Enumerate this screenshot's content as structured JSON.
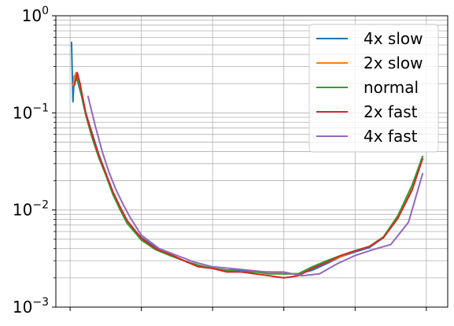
{
  "chart_data": {
    "type": "line",
    "title": "",
    "xlabel": "",
    "ylabel": "",
    "yscale": "log",
    "ylim": [
      0.001,
      1
    ],
    "xlim": [
      -0.2,
      5.3
    ],
    "x_ticks": [
      0,
      1,
      2,
      3,
      4,
      5
    ],
    "x_tick_labels_visible": false,
    "y_ticks": [
      {
        "value": 0.001,
        "base": "10",
        "exp": "−3"
      },
      {
        "value": 0.01,
        "base": "10",
        "exp": "−2"
      },
      {
        "value": 0.1,
        "base": "10",
        "exp": "−1"
      },
      {
        "value": 1,
        "base": "10",
        "exp": "0"
      }
    ],
    "grid": {
      "major": true,
      "minor_y": true
    },
    "legend": {
      "position": "top-right"
    },
    "series": [
      {
        "name": "4x slow",
        "color": "#1f77b4",
        "x": [
          0.02,
          0.04,
          0.06,
          0.1,
          0.13,
          0.16,
          0.2,
          0.3,
          0.4,
          0.5,
          0.6,
          0.7,
          0.8,
          1.0,
          1.2,
          1.4,
          1.6,
          1.8,
          2.0,
          2.2,
          2.4,
          2.6,
          2.8,
          3.0,
          3.2,
          3.4,
          3.6,
          3.8,
          4.0,
          4.2,
          4.4,
          4.6,
          4.8,
          4.95
        ],
        "y": [
          0.54,
          0.13,
          0.24,
          0.22,
          0.18,
          0.15,
          0.11,
          0.065,
          0.038,
          0.024,
          0.015,
          0.0105,
          0.0075,
          0.0052,
          0.0041,
          0.0035,
          0.003,
          0.0027,
          0.0025,
          0.0024,
          0.0024,
          0.0023,
          0.0023,
          0.0022,
          0.0022,
          0.0024,
          0.0028,
          0.0033,
          0.0037,
          0.0041,
          0.0052,
          0.0085,
          0.017,
          0.036
        ]
      },
      {
        "name": "2x slow",
        "color": "#ff7f0e",
        "x": [
          0.04,
          0.08,
          0.1,
          0.14,
          0.18,
          0.22,
          0.3,
          0.4,
          0.5,
          0.6,
          0.7,
          0.8,
          1.0,
          1.2,
          1.4,
          1.6,
          1.8,
          2.0,
          2.2,
          2.4,
          2.6,
          2.8,
          3.0,
          3.2,
          3.4,
          3.6,
          3.8,
          4.0,
          4.2,
          4.4,
          4.6,
          4.8,
          4.95
        ],
        "y": [
          0.19,
          0.26,
          0.24,
          0.19,
          0.14,
          0.1,
          0.062,
          0.037,
          0.024,
          0.0148,
          0.0103,
          0.0074,
          0.005,
          0.004,
          0.0035,
          0.003,
          0.0027,
          0.0025,
          0.0024,
          0.0023,
          0.0023,
          0.0023,
          0.0022,
          0.0022,
          0.0025,
          0.0029,
          0.0033,
          0.0038,
          0.0042,
          0.0053,
          0.0087,
          0.017,
          0.034
        ]
      },
      {
        "name": "normal",
        "color": "#2ca02c",
        "x": [
          0.06,
          0.1,
          0.14,
          0.18,
          0.22,
          0.3,
          0.4,
          0.5,
          0.6,
          0.7,
          0.8,
          1.0,
          1.2,
          1.4,
          1.6,
          1.8,
          2.0,
          2.2,
          2.4,
          2.6,
          2.8,
          3.0,
          3.2,
          3.4,
          3.6,
          3.8,
          4.0,
          4.2,
          4.4,
          4.6,
          4.8,
          4.95
        ],
        "y": [
          0.2,
          0.23,
          0.18,
          0.13,
          0.095,
          0.058,
          0.035,
          0.023,
          0.0145,
          0.0101,
          0.0073,
          0.0049,
          0.0039,
          0.0034,
          0.003,
          0.0027,
          0.0025,
          0.0024,
          0.0023,
          0.0023,
          0.0022,
          0.0022,
          0.0022,
          0.0026,
          0.003,
          0.0034,
          0.0038,
          0.0042,
          0.0053,
          0.0087,
          0.018,
          0.036
        ]
      },
      {
        "name": "2x fast",
        "color": "#d62728",
        "x": [
          0.06,
          0.1,
          0.14,
          0.18,
          0.22,
          0.3,
          0.4,
          0.5,
          0.6,
          0.7,
          0.8,
          1.0,
          1.2,
          1.4,
          1.6,
          1.8,
          2.0,
          2.2,
          2.4,
          2.6,
          2.8,
          3.0,
          3.2,
          3.4,
          3.6,
          3.8,
          4.0,
          4.2,
          4.4,
          4.6,
          4.8,
          4.95
        ],
        "y": [
          0.19,
          0.26,
          0.2,
          0.14,
          0.1,
          0.062,
          0.037,
          0.024,
          0.0155,
          0.0108,
          0.0078,
          0.0051,
          0.004,
          0.0035,
          0.003,
          0.0026,
          0.0025,
          0.0023,
          0.0023,
          0.0022,
          0.0021,
          0.002,
          0.0021,
          0.0025,
          0.0029,
          0.0034,
          0.0038,
          0.0042,
          0.0052,
          0.0082,
          0.016,
          0.034
        ]
      },
      {
        "name": "4x fast",
        "color": "#9467bd",
        "x": [
          0.25,
          0.35,
          0.45,
          0.55,
          0.65,
          0.75,
          0.85,
          1.0,
          1.25,
          1.5,
          1.75,
          2.0,
          2.25,
          2.5,
          2.75,
          3.0,
          3.25,
          3.5,
          3.75,
          4.0,
          4.25,
          4.5,
          4.75,
          4.95
        ],
        "y": [
          0.15,
          0.075,
          0.04,
          0.024,
          0.0158,
          0.0112,
          0.0082,
          0.0055,
          0.004,
          0.0034,
          0.0029,
          0.0026,
          0.0025,
          0.0024,
          0.0023,
          0.0023,
          0.0021,
          0.0022,
          0.0028,
          0.0034,
          0.0039,
          0.0044,
          0.0075,
          0.024
        ]
      }
    ]
  }
}
